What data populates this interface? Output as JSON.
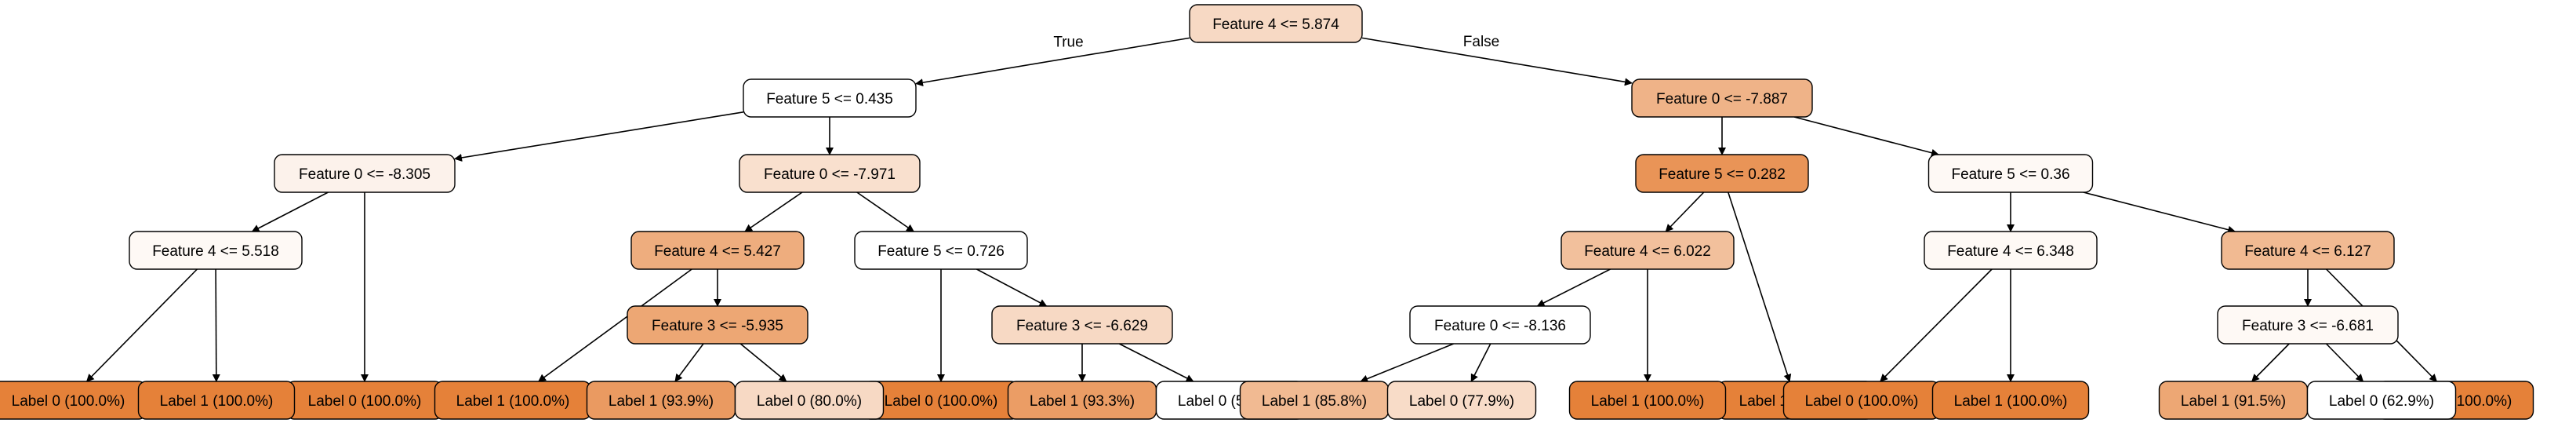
{
  "tree": {
    "edge_labels": {
      "true_label": "True",
      "false_label": "False"
    },
    "palette": {
      "white": "#ffffff",
      "orange": "#e58139"
    },
    "nodes": [
      {
        "id": "n0",
        "label": "Feature 4 <= 5.874",
        "leaf": false,
        "shade": 0.3
      },
      {
        "id": "n1",
        "label": "Feature 5 <= 0.435",
        "leaf": false,
        "shade": 0.0
      },
      {
        "id": "n2",
        "label": "Feature 0 <= -7.887",
        "leaf": false,
        "shade": 0.6
      },
      {
        "id": "n3",
        "label": "Feature 0 <= -8.305",
        "leaf": false,
        "shade": 0.1
      },
      {
        "id": "n4",
        "label": "Feature 0 <= -7.971",
        "leaf": false,
        "shade": 0.25
      },
      {
        "id": "n5",
        "label": "Feature 5 <= 0.282",
        "leaf": false,
        "shade": 0.85
      },
      {
        "id": "n6",
        "label": "Feature 5 <= 0.36",
        "leaf": false,
        "shade": 0.05
      },
      {
        "id": "n7",
        "label": "Feature 4 <= 5.518",
        "leaf": false,
        "shade": 0.05
      },
      {
        "id": "n8",
        "label": "Label 0 (100.0%)",
        "leaf": true,
        "shade": 1.0
      },
      {
        "id": "n9",
        "label": "Feature 4 <= 5.427",
        "leaf": false,
        "shade": 0.65
      },
      {
        "id": "n10",
        "label": "Feature 5 <= 0.726",
        "leaf": false,
        "shade": 0.0
      },
      {
        "id": "n11",
        "label": "Feature 4 <= 6.022",
        "leaf": false,
        "shade": 0.5
      },
      {
        "id": "n12",
        "label": "Label 1 (100.0%)",
        "leaf": true,
        "shade": 1.0
      },
      {
        "id": "n13",
        "label": "Feature 4 <= 6.348",
        "leaf": false,
        "shade": 0.05
      },
      {
        "id": "n14",
        "label": "Feature 4 <= 6.127",
        "leaf": false,
        "shade": 0.55
      },
      {
        "id": "n15",
        "label": "Label 0 (100.0%)",
        "leaf": true,
        "shade": 1.0
      },
      {
        "id": "n16",
        "label": "Label 1 (100.0%)",
        "leaf": true,
        "shade": 1.0
      },
      {
        "id": "n17",
        "label": "Label 1 (100.0%)",
        "leaf": true,
        "shade": 1.0
      },
      {
        "id": "n18",
        "label": "Feature 3 <= -5.935",
        "leaf": false,
        "shade": 0.7
      },
      {
        "id": "n19",
        "label": "Label 0 (100.0%)",
        "leaf": true,
        "shade": 1.0
      },
      {
        "id": "n20",
        "label": "Feature 3 <= -6.629",
        "leaf": false,
        "shade": 0.3
      },
      {
        "id": "n21",
        "label": "Feature 0 <= -8.136",
        "leaf": false,
        "shade": 0.0
      },
      {
        "id": "n22",
        "label": "Label 1 (100.0%)",
        "leaf": true,
        "shade": 1.0
      },
      {
        "id": "n23",
        "label": "Label 0 (100.0%)",
        "leaf": true,
        "shade": 1.0
      },
      {
        "id": "n24",
        "label": "Label 1 (100.0%)",
        "leaf": true,
        "shade": 1.0
      },
      {
        "id": "n25",
        "label": "Feature 3 <= -6.681",
        "leaf": false,
        "shade": 0.05
      },
      {
        "id": "n26",
        "label": "Label 1 (100.0%)",
        "leaf": true,
        "shade": 1.0
      },
      {
        "id": "n27",
        "label": "Label 1 (93.9%)",
        "leaf": true,
        "shade": 0.8
      },
      {
        "id": "n28",
        "label": "Label 0 (80.0%)",
        "leaf": true,
        "shade": 0.3
      },
      {
        "id": "n29",
        "label": "Label 1 (93.3%)",
        "leaf": true,
        "shade": 0.78
      },
      {
        "id": "n30",
        "label": "Label 0 (52.0%)",
        "leaf": true,
        "shade": 0.0
      },
      {
        "id": "n31",
        "label": "Label 1 (85.8%)",
        "leaf": true,
        "shade": 0.55
      },
      {
        "id": "n32",
        "label": "Label 0 (77.9%)",
        "leaf": true,
        "shade": 0.28
      },
      {
        "id": "n33",
        "label": "Label 1 (91.5%)",
        "leaf": true,
        "shade": 0.7
      },
      {
        "id": "n34",
        "label": "Label 0 (62.9%)",
        "leaf": true,
        "shade": 0.0
      }
    ],
    "edges": [
      {
        "from": "n0",
        "to": "n1",
        "label": "true_label"
      },
      {
        "from": "n0",
        "to": "n2",
        "label": "false_label"
      },
      {
        "from": "n1",
        "to": "n3"
      },
      {
        "from": "n1",
        "to": "n4"
      },
      {
        "from": "n2",
        "to": "n5"
      },
      {
        "from": "n2",
        "to": "n6"
      },
      {
        "from": "n3",
        "to": "n7"
      },
      {
        "from": "n3",
        "to": "n8"
      },
      {
        "from": "n4",
        "to": "n9"
      },
      {
        "from": "n4",
        "to": "n10"
      },
      {
        "from": "n5",
        "to": "n11"
      },
      {
        "from": "n5",
        "to": "n12"
      },
      {
        "from": "n6",
        "to": "n13"
      },
      {
        "from": "n6",
        "to": "n14"
      },
      {
        "from": "n7",
        "to": "n15"
      },
      {
        "from": "n7",
        "to": "n16"
      },
      {
        "from": "n9",
        "to": "n17"
      },
      {
        "from": "n9",
        "to": "n18"
      },
      {
        "from": "n10",
        "to": "n19"
      },
      {
        "from": "n10",
        "to": "n20"
      },
      {
        "from": "n11",
        "to": "n21"
      },
      {
        "from": "n11",
        "to": "n22"
      },
      {
        "from": "n13",
        "to": "n23"
      },
      {
        "from": "n13",
        "to": "n24"
      },
      {
        "from": "n14",
        "to": "n25"
      },
      {
        "from": "n14",
        "to": "n26"
      },
      {
        "from": "n18",
        "to": "n27"
      },
      {
        "from": "n18",
        "to": "n28"
      },
      {
        "from": "n20",
        "to": "n29"
      },
      {
        "from": "n20",
        "to": "n30"
      },
      {
        "from": "n21",
        "to": "n31"
      },
      {
        "from": "n21",
        "to": "n32"
      },
      {
        "from": "n25",
        "to": "n33"
      },
      {
        "from": "n25",
        "to": "n34"
      }
    ]
  }
}
